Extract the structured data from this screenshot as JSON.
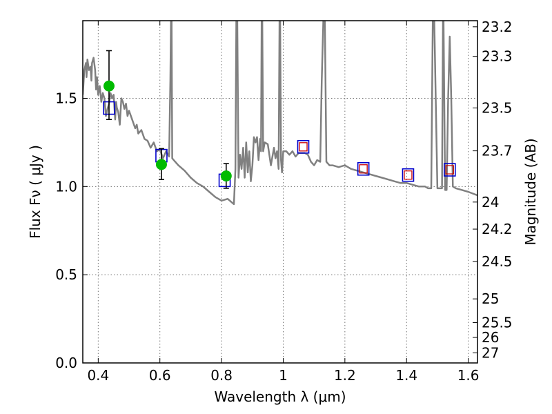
{
  "chart_data": {
    "type": "line",
    "xlabel": "Wavelength  λ (μm)",
    "ylabel": "Flux  Fν  ( μJy )",
    "y2label": "Magnitude (AB)",
    "xlim": [
      0.35,
      1.63
    ],
    "ylim": [
      0.0,
      1.94
    ],
    "grid": true,
    "x_ticks": [
      0.4,
      0.6,
      0.8,
      1.0,
      1.2,
      1.4,
      1.6
    ],
    "x_tick_labels": [
      "0.4",
      "0.6",
      "0.8",
      "1",
      "1.2",
      "1.4",
      "1.6"
    ],
    "y_ticks": [
      0.0,
      0.5,
      1.0,
      1.5
    ],
    "y_tick_labels": [
      "0.0",
      "0.5",
      "1.0",
      "1.5"
    ],
    "mag_ticks": [
      23.2,
      23.3,
      23.5,
      23.7,
      24,
      24.2,
      24.5,
      25,
      25.5,
      26,
      27
    ],
    "mag_tick_labels": [
      "23.2",
      "23.3",
      "23.5",
      "23.7",
      "24",
      "24.2",
      "24.5",
      "25",
      "25.5",
      "26",
      "27"
    ],
    "colors": {
      "model_line": "#808080",
      "observed_fill": "#00bb00",
      "model_box": "#0000cc",
      "model_inner_box": "#cc0000"
    },
    "model_sed": {
      "x": [
        0.35,
        0.355,
        0.36,
        0.362,
        0.365,
        0.37,
        0.375,
        0.378,
        0.38,
        0.385,
        0.39,
        0.393,
        0.396,
        0.4,
        0.405,
        0.41,
        0.415,
        0.42,
        0.425,
        0.43,
        0.435,
        0.44,
        0.445,
        0.45,
        0.455,
        0.458,
        0.46,
        0.465,
        0.47,
        0.475,
        0.48,
        0.485,
        0.49,
        0.495,
        0.5,
        0.51,
        0.52,
        0.525,
        0.53,
        0.54,
        0.55,
        0.56,
        0.57,
        0.58,
        0.59,
        0.6,
        0.61,
        0.62,
        0.63,
        0.634,
        0.636,
        0.638,
        0.64,
        0.645,
        0.66,
        0.68,
        0.7,
        0.72,
        0.74,
        0.76,
        0.78,
        0.8,
        0.82,
        0.84,
        0.845,
        0.848,
        0.851,
        0.855,
        0.86,
        0.865,
        0.87,
        0.875,
        0.88,
        0.885,
        0.89,
        0.895,
        0.9,
        0.905,
        0.91,
        0.915,
        0.92,
        0.925,
        0.928,
        0.93,
        0.932,
        0.935,
        0.94,
        0.95,
        0.96,
        0.97,
        0.975,
        0.98,
        0.985,
        0.988,
        0.99,
        0.993,
        0.996,
        1.0,
        1.01,
        1.02,
        1.03,
        1.04,
        1.05,
        1.06,
        1.07,
        1.08,
        1.09,
        1.1,
        1.11,
        1.12,
        1.125,
        1.13,
        1.135,
        1.14,
        1.15,
        1.16,
        1.18,
        1.2,
        1.22,
        1.24,
        1.26,
        1.28,
        1.3,
        1.32,
        1.34,
        1.36,
        1.38,
        1.4,
        1.42,
        1.44,
        1.46,
        1.47,
        1.475,
        1.48,
        1.485,
        1.49,
        1.5,
        1.51,
        1.512,
        1.515,
        1.518,
        1.52,
        1.525,
        1.53,
        1.535,
        1.54,
        1.545,
        1.55,
        1.56,
        1.58,
        1.6,
        1.63
      ],
      "y": [
        1.52,
        1.66,
        1.7,
        1.62,
        1.72,
        1.66,
        1.68,
        1.6,
        1.7,
        1.73,
        1.66,
        1.55,
        1.62,
        1.52,
        1.57,
        1.48,
        1.53,
        1.5,
        1.4,
        1.44,
        1.47,
        1.53,
        1.5,
        1.52,
        1.38,
        1.48,
        1.45,
        1.42,
        1.35,
        1.5,
        1.48,
        1.44,
        1.47,
        1.4,
        1.43,
        1.38,
        1.33,
        1.35,
        1.3,
        1.32,
        1.27,
        1.26,
        1.22,
        1.25,
        1.2,
        1.21,
        1.16,
        1.2,
        1.17,
        1.6,
        1.94,
        1.94,
        1.16,
        1.15,
        1.12,
        1.09,
        1.05,
        1.02,
        1.0,
        0.97,
        0.94,
        0.92,
        0.93,
        0.9,
        1.1,
        1.94,
        1.94,
        1.05,
        1.18,
        1.1,
        1.22,
        1.05,
        1.25,
        1.08,
        1.2,
        1.03,
        1.12,
        1.28,
        1.25,
        1.28,
        1.15,
        1.27,
        1.2,
        1.94,
        1.94,
        1.2,
        1.25,
        1.24,
        1.12,
        1.22,
        1.16,
        1.2,
        1.1,
        1.94,
        1.94,
        1.15,
        1.08,
        1.2,
        1.2,
        1.18,
        1.2,
        1.17,
        1.19,
        1.19,
        1.19,
        1.18,
        1.14,
        1.12,
        1.15,
        1.14,
        1.6,
        1.94,
        1.94,
        1.14,
        1.12,
        1.12,
        1.11,
        1.12,
        1.1,
        1.09,
        1.08,
        1.07,
        1.06,
        1.05,
        1.04,
        1.03,
        1.02,
        1.02,
        1.01,
        1.0,
        1.0,
        0.99,
        0.99,
        0.99,
        1.94,
        1.94,
        0.99,
        0.99,
        0.99,
        0.99,
        1.94,
        1.94,
        0.98,
        0.98,
        1.5,
        1.85,
        1.5,
        1.0,
        0.99,
        0.98,
        0.97,
        0.95
      ]
    },
    "observed_points": {
      "x": [
        0.435,
        0.605,
        0.815
      ],
      "y": [
        1.57,
        1.125,
        1.06
      ],
      "yerr_low": [
        0.19,
        0.085,
        0.07
      ],
      "yerr_high": [
        0.2,
        0.09,
        0.07
      ]
    },
    "model_photometry": {
      "x": [
        0.435,
        0.605,
        0.81,
        1.065,
        1.26,
        1.405,
        1.54
      ],
      "y": [
        1.445,
        1.175,
        1.035,
        1.225,
        1.1,
        1.065,
        1.095
      ],
      "inner_box": [
        false,
        false,
        false,
        true,
        true,
        true,
        true
      ]
    }
  }
}
